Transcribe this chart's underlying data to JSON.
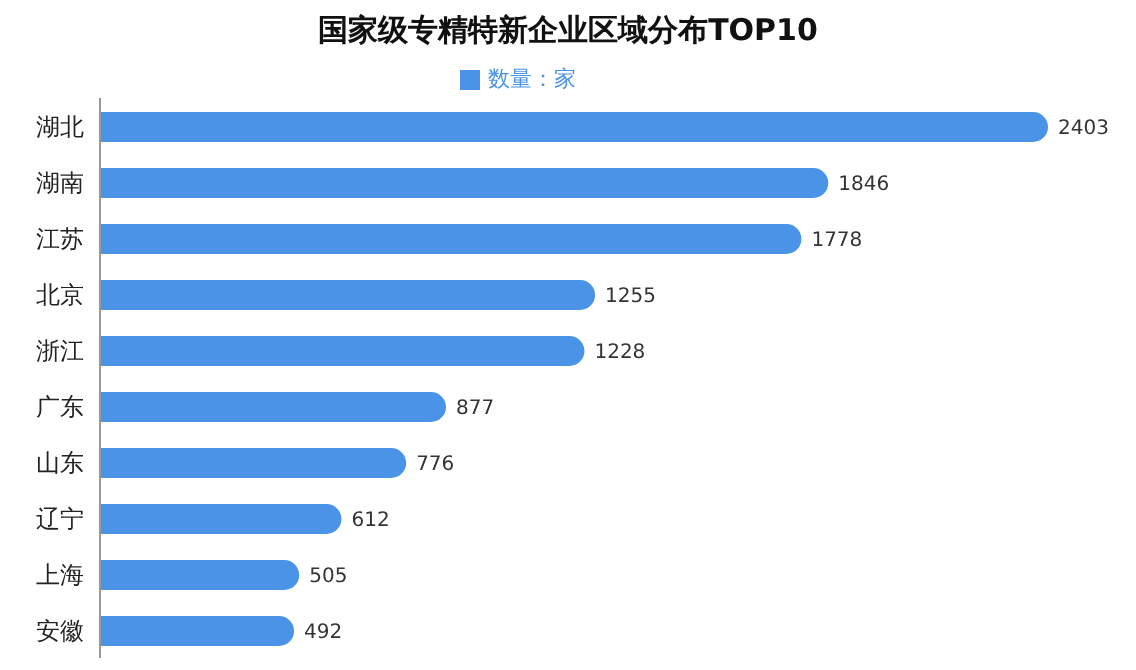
{
  "chart_data": {
    "type": "bar",
    "orientation": "horizontal",
    "title": "国家级专精特新企业区域分布TOP10",
    "categories": [
      "湖北",
      "湖南",
      "江苏",
      "北京",
      "浙江",
      "广东",
      "山东",
      "辽宁",
      "上海",
      "安徽"
    ],
    "series": [
      {
        "name": "数量：家",
        "color": "#4a93e6",
        "values": [
          2403,
          1846,
          1778,
          1255,
          1228,
          877,
          776,
          612,
          505,
          492
        ]
      }
    ],
    "data_labels": true,
    "legend": "top",
    "grid": false,
    "tick_labels": "y"
  }
}
